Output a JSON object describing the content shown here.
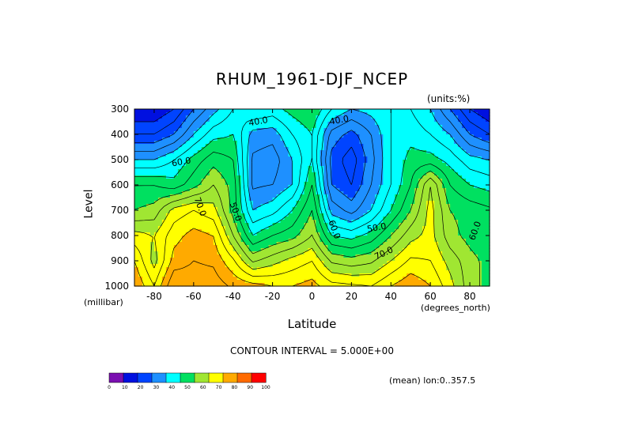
{
  "chart_data": {
    "type": "heatmap",
    "title": "RHUM_1961-DJF_NCEP",
    "units_label": "(units:%)",
    "xlabel": "Latitude",
    "ylabel": "Level",
    "x_unit_label": "(degrees_north)",
    "y_unit_label": "(millibar)",
    "xlim": [
      -90,
      90
    ],
    "ylim": [
      1000,
      300
    ],
    "x_ticks": [
      -80,
      -60,
      -40,
      -20,
      0,
      20,
      40,
      60,
      80
    ],
    "y_ticks": [
      300,
      400,
      500,
      600,
      700,
      800,
      900,
      1000
    ],
    "contour_interval_text": "CONTOUR INTERVAL = 5.000E+00",
    "mean_text": "(mean) lon:0..357.5",
    "levels_hPa": [
      300,
      400,
      500,
      600,
      700,
      800,
      900,
      1000
    ],
    "latitudes": [
      -90,
      -80,
      -70,
      -60,
      -50,
      -40,
      -30,
      -20,
      -10,
      0,
      10,
      20,
      30,
      40,
      50,
      60,
      70,
      80,
      90
    ],
    "rhum": [
      [
        15,
        15,
        20,
        30,
        38,
        45,
        50,
        48,
        52,
        55,
        45,
        40,
        42,
        45,
        45,
        40,
        30,
        20,
        15
      ],
      [
        25,
        25,
        30,
        40,
        48,
        50,
        38,
        37,
        45,
        50,
        33,
        28,
        35,
        45,
        48,
        45,
        40,
        30,
        25
      ],
      [
        40,
        40,
        45,
        52,
        58,
        55,
        34,
        32,
        40,
        50,
        28,
        22,
        33,
        45,
        52,
        52,
        48,
        42,
        40
      ],
      [
        55,
        55,
        52,
        58,
        65,
        58,
        34,
        35,
        40,
        55,
        30,
        25,
        35,
        45,
        55,
        70,
        55,
        50,
        48
      ],
      [
        60,
        62,
        72,
        75,
        72,
        58,
        40,
        43,
        50,
        60,
        38,
        33,
        40,
        50,
        60,
        72,
        60,
        58,
        56
      ],
      [
        72,
        70,
        78,
        82,
        80,
        65,
        50,
        55,
        58,
        65,
        50,
        48,
        52,
        60,
        68,
        72,
        62,
        58,
        55
      ],
      [
        80,
        68,
        82,
        85,
        84,
        76,
        64,
        68,
        72,
        75,
        64,
        62,
        64,
        70,
        76,
        75,
        68,
        62,
        58
      ],
      [
        85,
        75,
        90,
        88,
        88,
        84,
        82,
        80,
        80,
        82,
        77,
        76,
        75,
        80,
        84,
        80,
        72,
        62,
        58
      ]
    ],
    "color_scale": {
      "tick_labels": [
        "0",
        "10",
        "20",
        "30",
        "40",
        "50",
        "60",
        "70",
        "80",
        "90",
        "100"
      ],
      "colors": [
        "#7a0fb0",
        "#0010e0",
        "#0044ff",
        "#1e90ff",
        "#00ffff",
        "#00e060",
        "#a0e632",
        "#ffff00",
        "#ffaa00",
        "#ff6a00",
        "#ff0000"
      ]
    },
    "contour_labels": [
      "40.0",
      "40.0",
      "60.0",
      "70.0",
      "50.0",
      "60.0",
      "50.0",
      "70.0",
      "60.0"
    ]
  }
}
